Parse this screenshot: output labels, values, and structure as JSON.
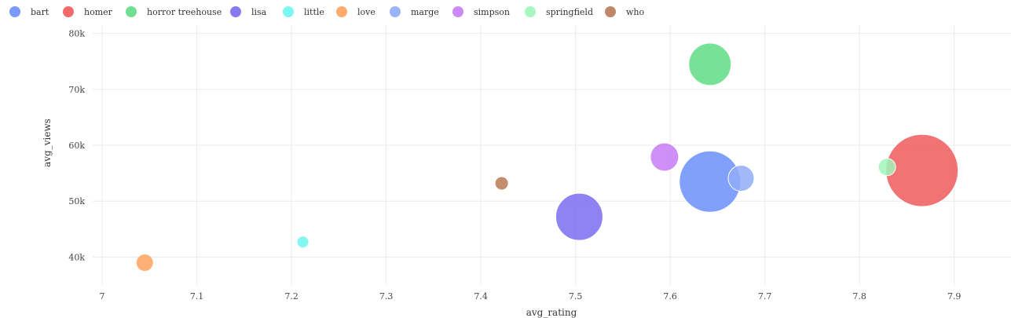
{
  "chart_data": {
    "type": "scatter",
    "variant": "bubble",
    "xlabel": "avg_rating",
    "ylabel": "avg_views",
    "xlim": [
      6.99,
      7.96
    ],
    "ylim": [
      35000,
      81500
    ],
    "x_ticks": [
      7,
      7.1,
      7.2,
      7.3,
      7.4,
      7.5,
      7.6,
      7.7,
      7.8,
      7.9
    ],
    "x_tick_labels": [
      "7",
      "7.1",
      "7.2",
      "7.3",
      "7.4",
      "7.5",
      "7.6",
      "7.7",
      "7.8",
      "7.9"
    ],
    "y_ticks": [
      40000,
      50000,
      60000,
      70000,
      80000
    ],
    "y_tick_labels": [
      "40k",
      "50k",
      "60k",
      "70k",
      "80k"
    ],
    "grid": true,
    "legend_position": "top",
    "series": [
      {
        "name": "bart",
        "color": "#6a8ffa",
        "x": 7.642,
        "y": 53500,
        "size": 78
      },
      {
        "name": "homer",
        "color": "#ef5b5b",
        "x": 7.866,
        "y": 55500,
        "size": 92
      },
      {
        "name": "horror treehouse",
        "color": "#5fdd85",
        "x": 7.642,
        "y": 74500,
        "size": 54
      },
      {
        "name": "lisa",
        "color": "#7b6cf0",
        "x": 7.504,
        "y": 47200,
        "size": 60
      },
      {
        "name": "little",
        "color": "#6df6f0",
        "x": 7.212,
        "y": 42700,
        "size": 15
      },
      {
        "name": "love",
        "color": "#ffa25e",
        "x": 7.045,
        "y": 39000,
        "size": 22
      },
      {
        "name": "marge",
        "color": "#90acf8",
        "x": 7.675,
        "y": 54100,
        "size": 33
      },
      {
        "name": "simpson",
        "color": "#c57cf6",
        "x": 7.594,
        "y": 57900,
        "size": 36
      },
      {
        "name": "springfield",
        "color": "#9ff6bb",
        "x": 7.829,
        "y": 56100,
        "size": 22
      },
      {
        "name": "who",
        "color": "#b97a55",
        "x": 7.422,
        "y": 53200,
        "size": 17
      }
    ]
  }
}
